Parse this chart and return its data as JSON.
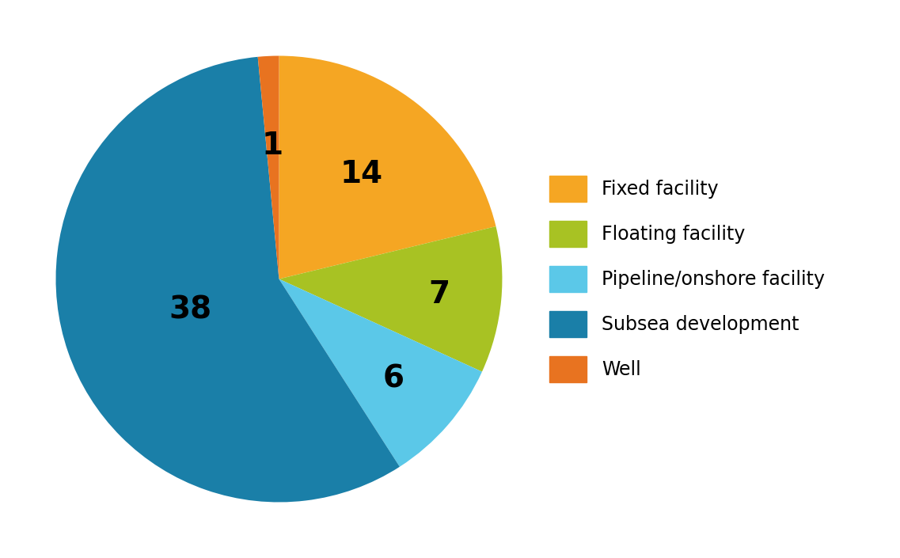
{
  "labels": [
    "Fixed facility",
    "Floating facility",
    "Pipeline/onshore facility",
    "Subsea development",
    "Well"
  ],
  "values": [
    14,
    7,
    6,
    38,
    1
  ],
  "colors": [
    "#F5A623",
    "#A8C223",
    "#5BC8E8",
    "#1A7FA8",
    "#E87320"
  ],
  "background_color": "#ffffff",
  "legend_fontsize": 17,
  "label_fontsize": 28,
  "startangle": 90,
  "label_radii": {
    "14": 0.6,
    "7": 0.72,
    "6": 0.68,
    "38": 0.42,
    "1": 0.6
  }
}
